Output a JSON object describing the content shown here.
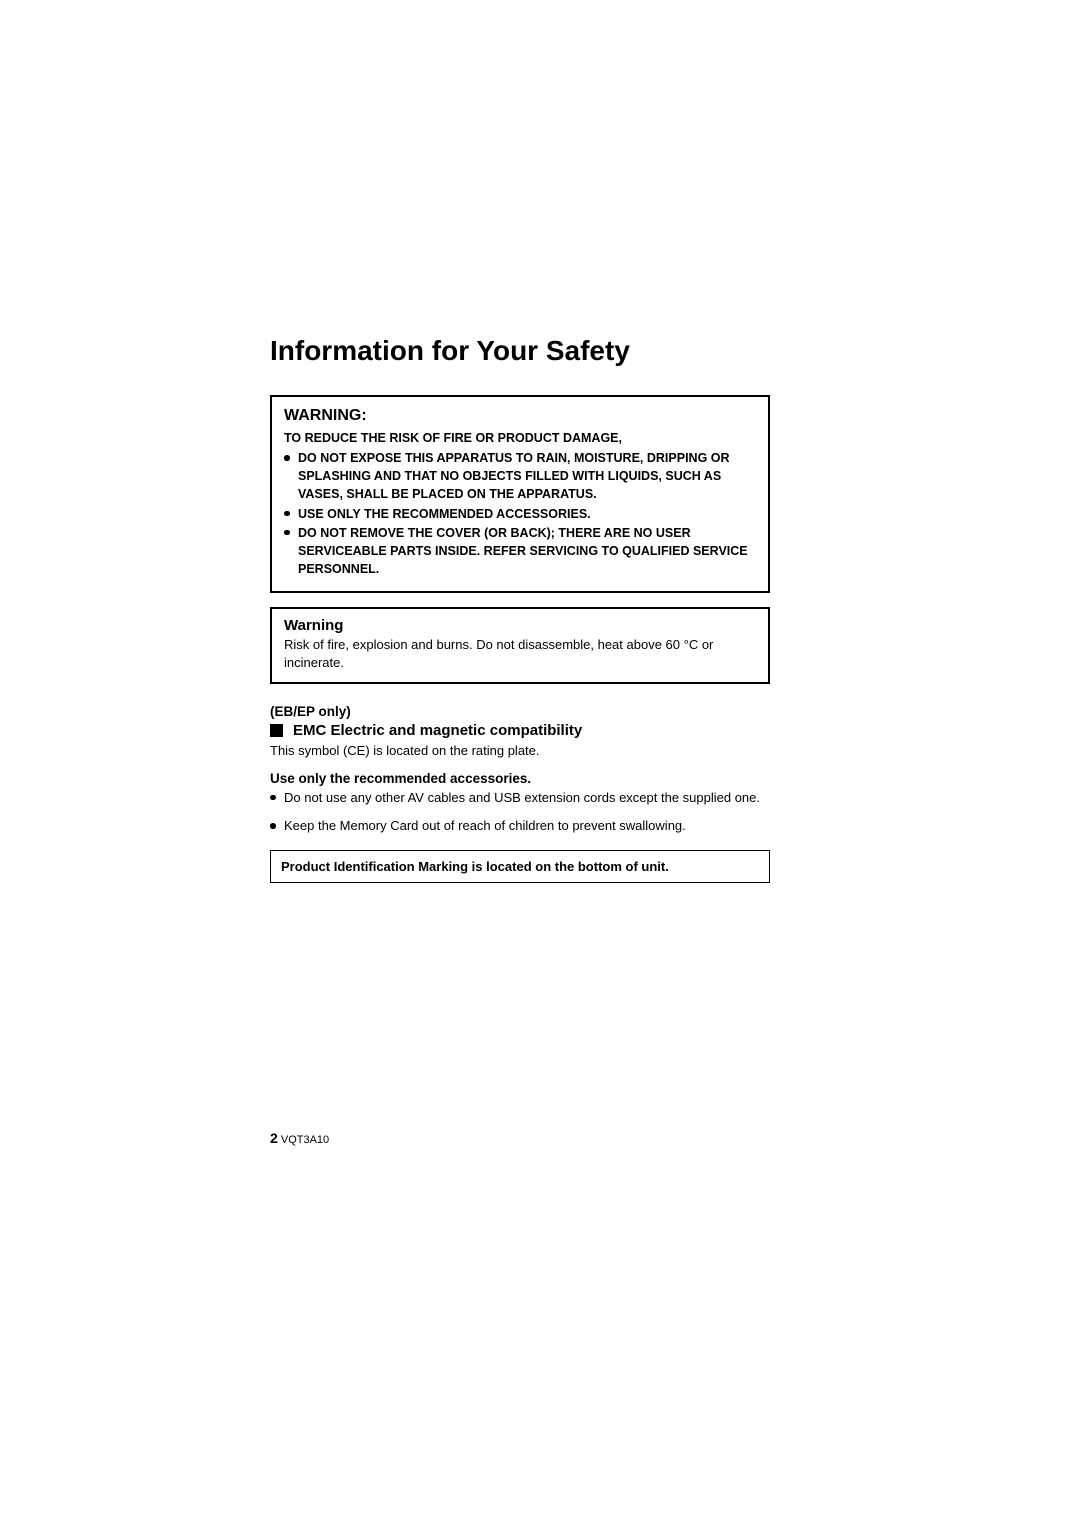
{
  "title": "Information for Your Safety",
  "warning_box": {
    "heading": "WARNING:",
    "subtitle": "TO REDUCE THE RISK OF FIRE OR PRODUCT DAMAGE,",
    "bullets": [
      "DO NOT EXPOSE THIS APPARATUS TO RAIN, MOISTURE, DRIPPING OR SPLASHING AND THAT NO OBJECTS FILLED WITH LIQUIDS, SUCH AS VASES, SHALL BE PLACED ON THE APPARATUS.",
      "USE ONLY THE RECOMMENDED ACCESSORIES.",
      "DO NOT REMOVE THE COVER (OR BACK); THERE ARE NO USER SERVICEABLE PARTS INSIDE. REFER SERVICING TO QUALIFIED SERVICE PERSONNEL."
    ]
  },
  "warning_box2": {
    "heading": "Warning",
    "body": "Risk of fire, explosion and burns. Do not disassemble, heat above 60 °C or incinerate."
  },
  "region_label": "(EB/EP only)",
  "emc_heading": "EMC Electric and magnetic compatibility",
  "emc_body": "This symbol (CE) is located on the rating plate.",
  "accessories_heading": "Use only the recommended accessories.",
  "accessories_bullets": [
    "Do not use any other AV cables and USB extension cords except the supplied one.",
    "Keep the Memory Card out of reach of children to prevent swallowing."
  ],
  "product_id_box": "Product Identification Marking is located on the bottom of unit.",
  "footer": {
    "page": "2",
    "code": "VQT3A10"
  }
}
